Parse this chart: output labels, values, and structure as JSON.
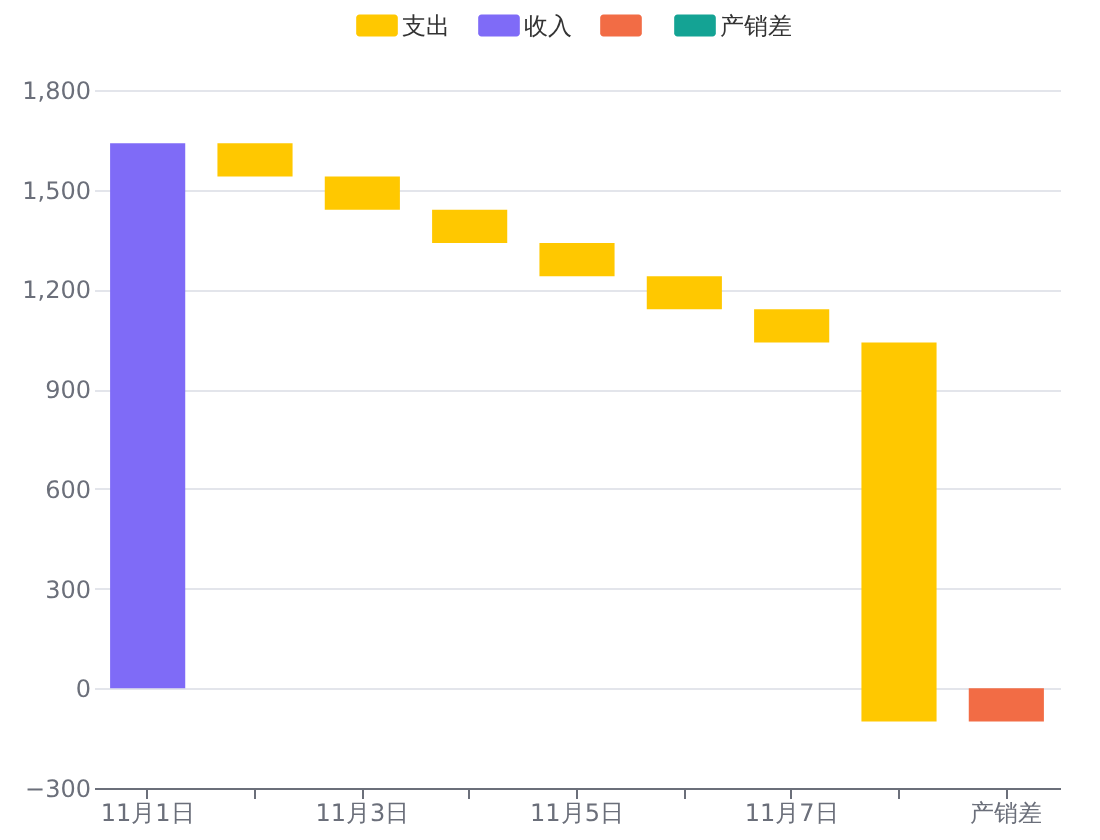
{
  "chart_data": {
    "type": "bar",
    "categories": [
      "11月1日",
      null,
      "11月3日",
      null,
      "11月5日",
      null,
      "11月7日",
      null,
      "产销差"
    ],
    "series": [
      {
        "name": "支出",
        "color": "#ffc800",
        "values": [
          null,
          100,
          100,
          100,
          100,
          100,
          100,
          1140,
          null
        ],
        "base": [
          null,
          1540,
          1440,
          1340,
          1240,
          1140,
          1040,
          -100,
          null
        ]
      },
      {
        "name": "收入",
        "color": "#7f6bf7",
        "values": [
          1640,
          null,
          null,
          null,
          null,
          null,
          null,
          null,
          null
        ]
      },
      {
        "color": "#f26c45",
        "values": [
          null,
          null,
          null,
          null,
          null,
          null,
          null,
          null,
          -100
        ]
      },
      {
        "name": "产销差",
        "color": "#14a394",
        "values": [
          null,
          null,
          null,
          null,
          null,
          null,
          null,
          null,
          null
        ]
      }
    ],
    "ylim": [
      -300,
      1800
    ],
    "yticks": [
      -300,
      0,
      300,
      600,
      900,
      {
        "value": 1200,
        "label": "1,200"
      },
      {
        "value": 1500,
        "label": "1,500"
      },
      {
        "value": 1800,
        "label": "1,800"
      }
    ],
    "grid": "y",
    "legend": "top"
  }
}
